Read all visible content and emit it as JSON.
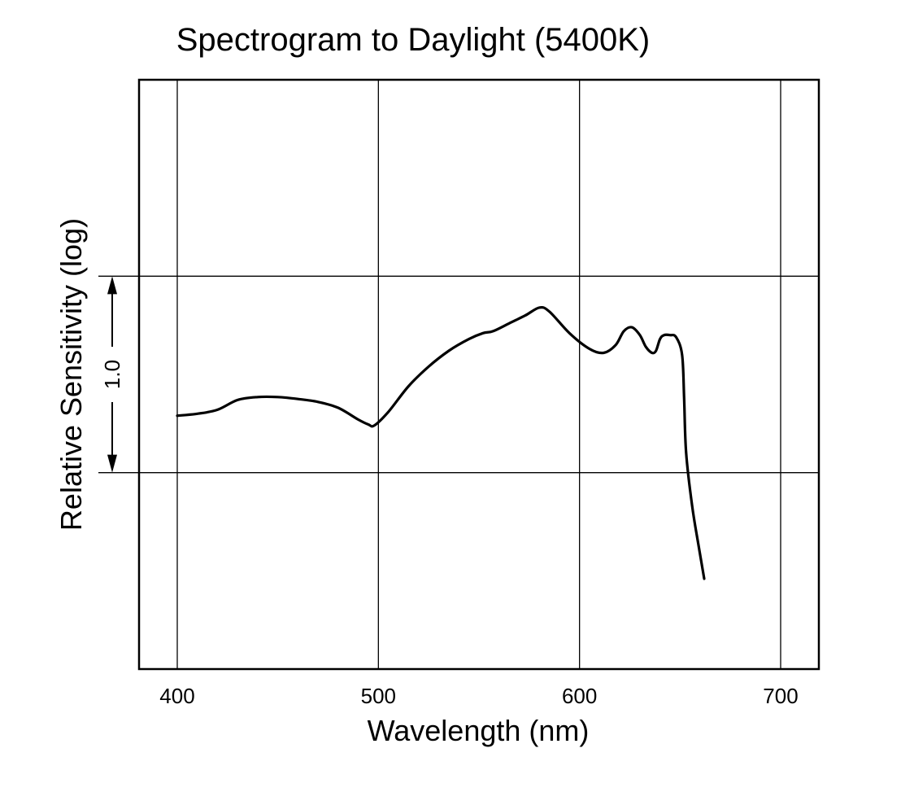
{
  "chart_data": {
    "type": "line",
    "title": "Spectrogram to Daylight (5400K)",
    "xlabel": "Wavelength (nm)",
    "ylabel": "Relative Sensitivity (log)",
    "xlim": [
      381,
      719
    ],
    "ylim": [
      -1.0,
      2.0
    ],
    "x_ticks": [
      400,
      500,
      600,
      700
    ],
    "x_tick_labels": [
      "400",
      "500",
      "600",
      "700"
    ],
    "y_gridlines": [
      0.0,
      1.0
    ],
    "grid": true,
    "annotation": {
      "label": "1.0",
      "from": 0.0,
      "to": 1.0
    },
    "series": [
      {
        "name": "Relative Sensitivity",
        "x": [
          400,
          410,
          420,
          430,
          440,
          450,
          460,
          470,
          480,
          490,
          495,
          498,
          505,
          515,
          525,
          535,
          545,
          552,
          557,
          565,
          573,
          580,
          585,
          595,
          605,
          612,
          618,
          622,
          626,
          630,
          633,
          636,
          638,
          640,
          642,
          645,
          648,
          651,
          652,
          653,
          656,
          659,
          662
        ],
        "y": [
          0.29,
          0.3,
          0.32,
          0.37,
          0.385,
          0.385,
          0.375,
          0.36,
          0.33,
          0.27,
          0.245,
          0.24,
          0.31,
          0.44,
          0.54,
          0.62,
          0.68,
          0.71,
          0.72,
          0.76,
          0.8,
          0.84,
          0.82,
          0.71,
          0.63,
          0.61,
          0.65,
          0.72,
          0.74,
          0.7,
          0.64,
          0.61,
          0.62,
          0.68,
          0.7,
          0.7,
          0.69,
          0.6,
          0.38,
          0.1,
          -0.17,
          -0.36,
          -0.54
        ]
      }
    ]
  }
}
